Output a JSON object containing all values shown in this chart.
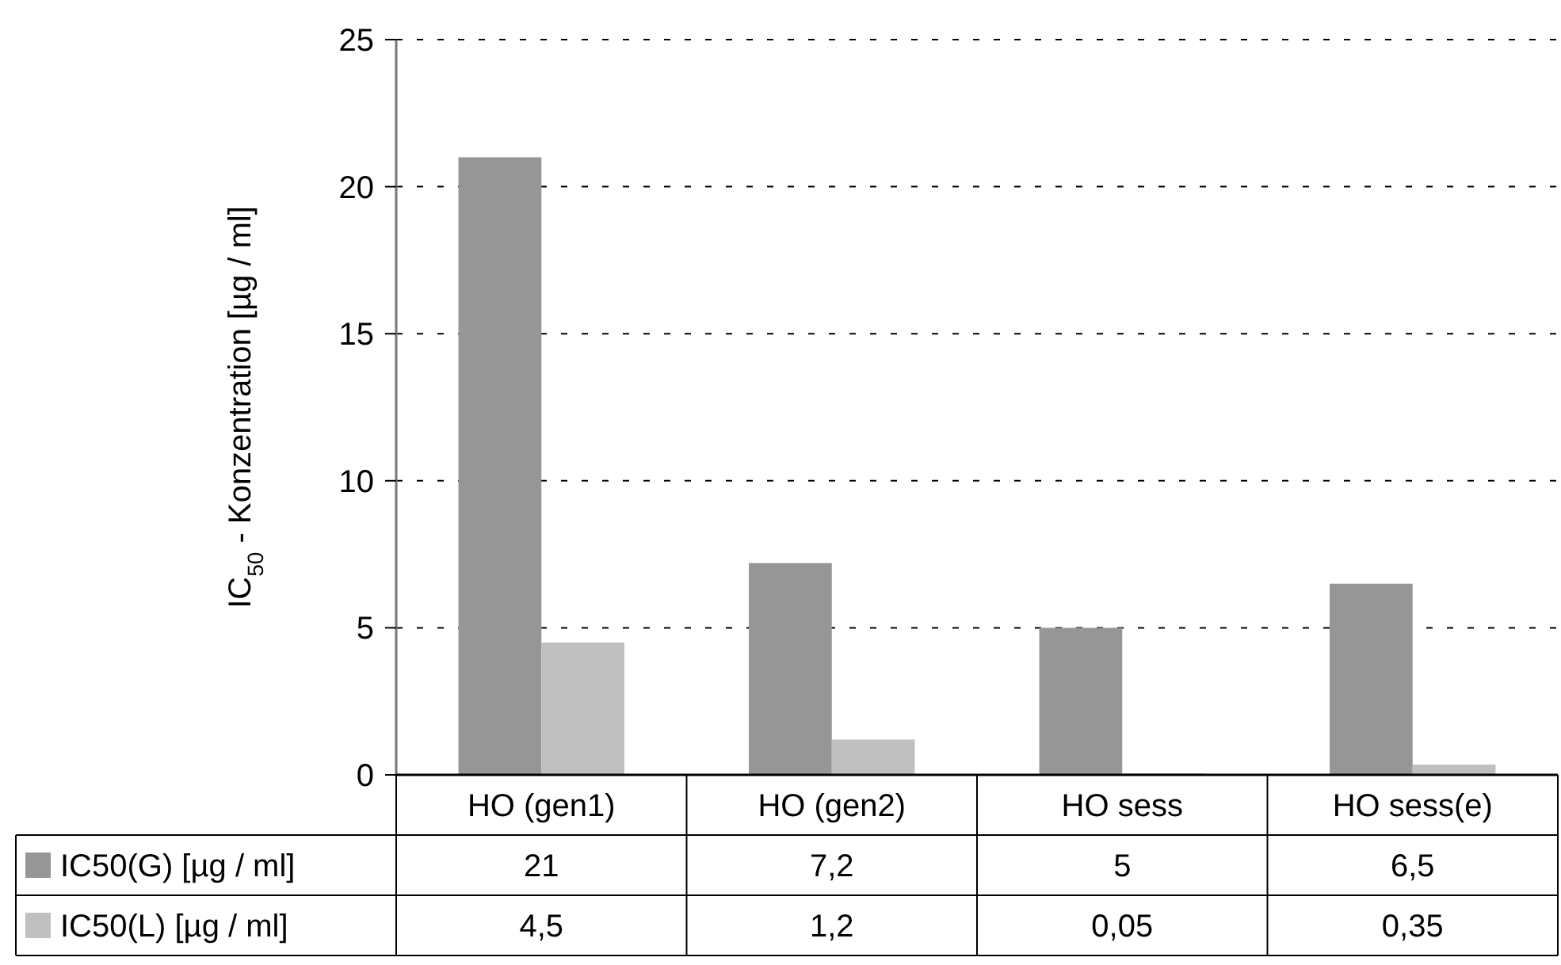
{
  "chart_data": {
    "type": "bar",
    "ylabel": "IC$_{50}$ - Konzentration [µg / ml]",
    "categories": [
      "HO (gen1)",
      "HO (gen2)",
      "HO sess",
      "HO sess(e)"
    ],
    "series": [
      {
        "name": "IC50(G) [µg / ml]",
        "color": "#969696",
        "values": [
          21,
          7.2,
          5,
          6.5
        ],
        "value_labels": [
          "21",
          "7,2",
          "5",
          "6,5"
        ]
      },
      {
        "name": "IC50(L) [µg / ml]",
        "color": "#c0c0c0",
        "values": [
          4.5,
          1.2,
          0.05,
          0.35
        ],
        "value_labels": [
          "4,5",
          "1,2",
          "0,05",
          "0,35"
        ]
      }
    ],
    "ylim": [
      0,
      25
    ],
    "yticks": [
      0,
      5,
      10,
      15,
      20,
      25
    ],
    "grid": "y",
    "legend": "left"
  }
}
